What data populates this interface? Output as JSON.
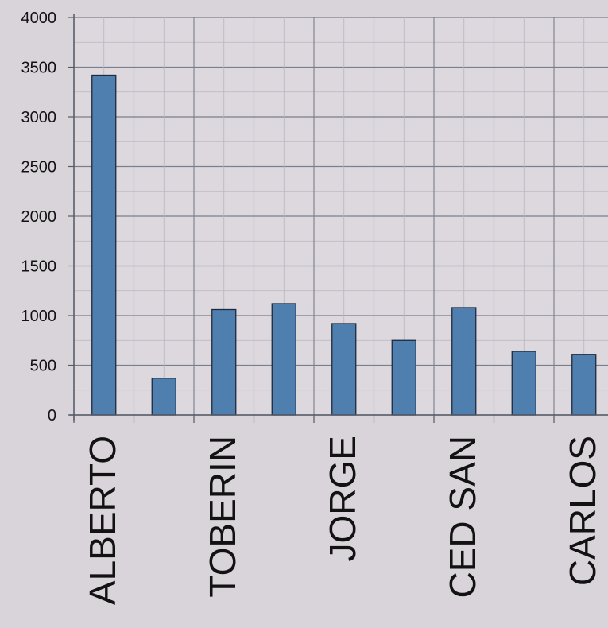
{
  "chart_data": {
    "type": "bar",
    "title": "",
    "xlabel": "",
    "ylabel": "",
    "ylim": [
      0,
      4000
    ],
    "yticks": [
      0,
      500,
      1000,
      1500,
      2000,
      2500,
      3000,
      3500,
      4000
    ],
    "grid": true,
    "legend": "none",
    "categories": [
      "ALBERTO",
      "",
      "TOBERIN",
      "",
      "JORGE",
      "",
      "CED SAN",
      "",
      "CARLOS"
    ],
    "values": [
      3420,
      370,
      1060,
      1120,
      920,
      750,
      1080,
      640,
      610
    ]
  },
  "colors": {
    "bar_fill": "#4f7fae",
    "bar_stroke": "#1e2a3c",
    "plot_background": "#dcd8de",
    "major_grid": "#7b7f8c",
    "minor_grid": "#b7b5be",
    "axis": "#555a66",
    "text": "#121212"
  }
}
